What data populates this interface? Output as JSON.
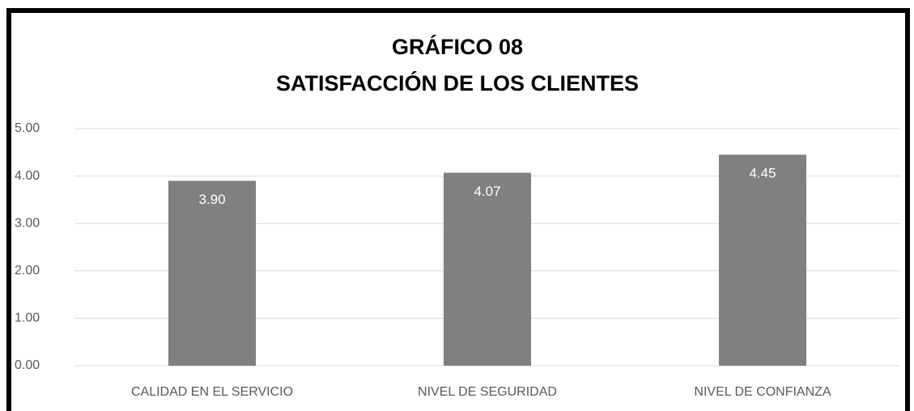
{
  "chart_data": {
    "type": "bar",
    "title": "GRÁFICO 08",
    "subtitle": "SATISFACCIÓN DE LOS CLIENTES",
    "categories": [
      "CALIDAD EN EL SERVICIO",
      "NIVEL DE SEGURIDAD",
      "NIVEL DE CONFIANZA"
    ],
    "values": [
      3.9,
      4.07,
      4.45
    ],
    "value_labels": [
      "3.90",
      "4.07",
      "4.45"
    ],
    "color": "#808080",
    "ylim": [
      0,
      5
    ],
    "yticks": [
      {
        "value": 0,
        "label": "0.00"
      },
      {
        "value": 1,
        "label": "1.00"
      },
      {
        "value": 2,
        "label": "2.00"
      },
      {
        "value": 3,
        "label": "3.00"
      },
      {
        "value": 4,
        "label": "4.00"
      },
      {
        "value": 5,
        "label": "5.00"
      }
    ],
    "grid": true
  }
}
